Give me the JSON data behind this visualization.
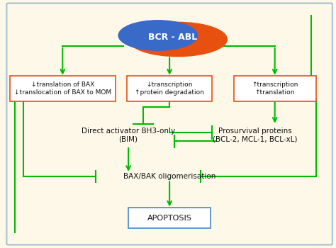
{
  "bg_color": "#fdf8e8",
  "outer_border_color": "#a8c0d0",
  "green": "#00bb00",
  "orange_red": "#e85010",
  "blue": "#3a6ac8",
  "box_border_orange": "#e85010",
  "box_border_blue": "#5590cc",
  "text_color": "#111111",
  "bcr_abl_text": "BCR - ABL",
  "box1_lines": [
    "↓translation of BAX",
    "↓translocation of BAX to MOM"
  ],
  "box2_lines": [
    "↓transcription",
    "↑protein degradation"
  ],
  "box3_lines": [
    "↑transcription",
    "↑translation"
  ],
  "bim_text": "Direct activator BH3-only\n(BIM)",
  "prosurvival_text": "Prosurvival proteins\n(BCL-2, MCL-1, BCL-xL)",
  "baxbak_text": "BAX/BAK oligomerisation",
  "apoptosis_text": "APOPTOSIS"
}
